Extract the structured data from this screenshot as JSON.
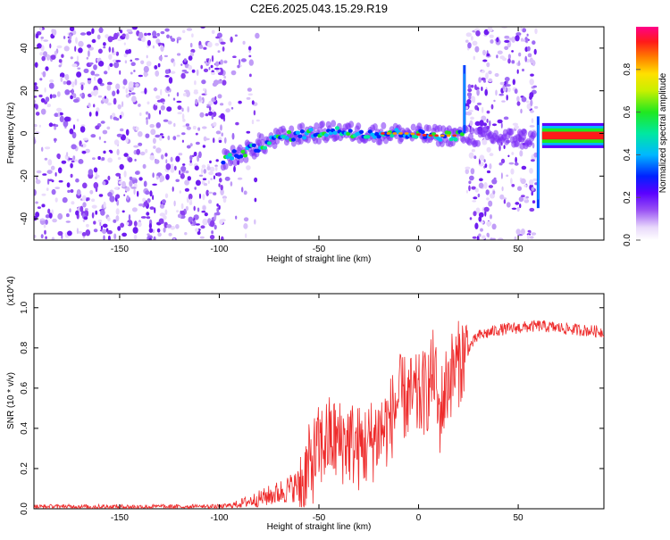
{
  "title": "C2E6.2025.043.15.29.R19",
  "colors": {
    "snr_line": "#ee2a2a",
    "spectrum_noise": "#8a3ff0",
    "axis": "#000000"
  },
  "chart_data": [
    {
      "type": "heatmap",
      "xlabel": "Height of straight line (km)",
      "ylabel": "Frequency (Hz)",
      "xlim": [
        -193,
        93
      ],
      "ylim": [
        -50,
        50
      ],
      "xticks": [
        -150,
        -100,
        -50,
        0,
        50
      ],
      "yticks": [
        -40,
        -20,
        0,
        20,
        40
      ],
      "colorbar": {
        "label": "Normalized spectral amplitude",
        "range": [
          0,
          1
        ],
        "ticks": [
          "0.0",
          "0.2",
          "0.4",
          "0.6",
          "0.8"
        ],
        "tick_values": [
          0.0,
          0.2,
          0.4,
          0.6,
          0.8
        ]
      },
      "features": {
        "noise_regions_km": [
          [
            -193,
            -97
          ],
          [
            -97,
            -80
          ],
          [
            24,
            59
          ]
        ],
        "signal_track": [
          {
            "x": -98,
            "y": -12
          },
          {
            "x": -85,
            "y": -8
          },
          {
            "x": -70,
            "y": -2
          },
          {
            "x": -55,
            "y": 0
          },
          {
            "x": -40,
            "y": 1
          },
          {
            "x": -25,
            "y": 0
          },
          {
            "x": -15,
            "y": 0
          },
          {
            "x": -5,
            "y": 0
          },
          {
            "x": 5,
            "y": -1
          },
          {
            "x": 20,
            "y": -1
          },
          {
            "x": 62,
            "y": -3
          },
          {
            "x": 93,
            "y": -1
          }
        ],
        "vertical_streaks_km": [
          23,
          60
        ]
      }
    },
    {
      "type": "line",
      "xlabel": "Height of straight line (km)",
      "ylabel": "SNR (10 * v/v)",
      "multiplier": "(x10^4)",
      "xlim": [
        -193,
        93
      ],
      "ylim": [
        0,
        1.07
      ],
      "xticks": [
        -150,
        -100,
        -50,
        0,
        50
      ],
      "yticks": [
        "0.0",
        "0.2",
        "0.4",
        "0.6",
        "0.8",
        "1.0"
      ],
      "ytick_values": [
        0.0,
        0.2,
        0.4,
        0.6,
        0.8,
        1.0
      ],
      "series": [
        {
          "color": "#ee2a2a",
          "x": [
            -193,
            -150,
            -100,
            -92,
            -88,
            -80,
            -70,
            -60,
            -55,
            -50,
            -45,
            -40,
            -35,
            -30,
            -25,
            -20,
            -15,
            -12,
            -10,
            -5,
            0,
            5,
            8,
            10,
            15,
            20,
            25,
            30,
            40,
            50,
            60,
            70,
            80,
            93
          ],
          "y": [
            0.01,
            0.01,
            0.01,
            0.02,
            0.03,
            0.05,
            0.08,
            0.12,
            0.2,
            0.3,
            0.35,
            0.33,
            0.34,
            0.3,
            0.32,
            0.38,
            0.42,
            0.5,
            0.55,
            0.55,
            0.55,
            0.6,
            0.7,
            0.45,
            0.65,
            0.72,
            0.8,
            0.86,
            0.89,
            0.9,
            0.91,
            0.9,
            0.89,
            0.88
          ]
        }
      ]
    }
  ]
}
